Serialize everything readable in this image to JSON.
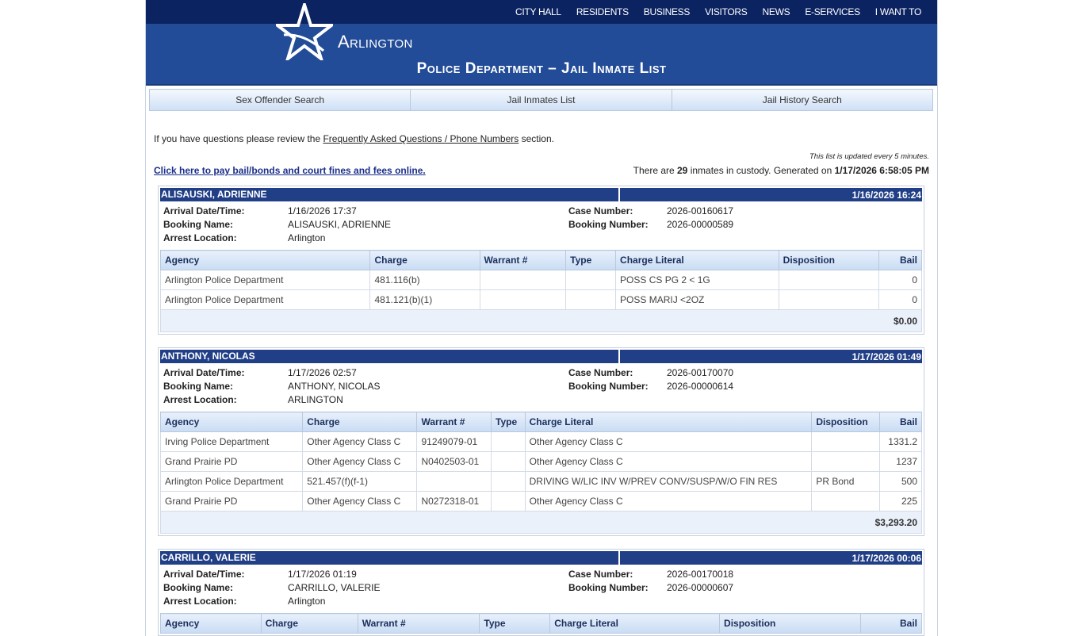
{
  "nav": [
    "CITY HALL",
    "RESIDENTS",
    "BUSINESS",
    "VISITORS",
    "NEWS",
    "E-SERVICES",
    "I WANT TO"
  ],
  "logo_text": "Arlington",
  "page_title": "Police Department – Jail Inmate List",
  "tabs": [
    "Sex Offender Search",
    "Jail Inmates List",
    "Jail History Search"
  ],
  "intro": {
    "before": "If you have questions please review the ",
    "link": "Frequently Asked Questions / Phone Numbers",
    "after": " section."
  },
  "updated": "This list is updated every 5 minutes.",
  "pay_link": "Click here to pay bail/bonds and court fines and fees online.",
  "count": {
    "pre": "There are ",
    "n": "29",
    "mid": " inmates in custody. Generated on ",
    "date": "1/17/2026 6:58:05 PM"
  },
  "labels": {
    "arrival": "Arrival Date/Time:",
    "booking_name": "Booking Name:",
    "arrest_location": "Arrest Location:",
    "case": "Case Number:",
    "booking_number": "Booking Number:"
  },
  "columns": [
    "Agency",
    "Charge",
    "Warrant #",
    "Type",
    "Charge Literal",
    "Disposition",
    "Bail"
  ],
  "inmates": [
    {
      "name": "ALISAUSKI, ADRIENNE",
      "date": "1/16/2026 16:24",
      "arrival": "1/16/2026 17:37",
      "booking_name": "ALISAUSKI, ADRIENNE",
      "arrest_location": "Arlington",
      "case": "2026-00160617",
      "booking_number": "2026-00000589",
      "charges": [
        [
          "Arlington Police Department",
          "481.116(b)",
          "",
          "",
          "POSS CS PG 2 < 1G",
          "",
          "0"
        ],
        [
          "Arlington Police Department",
          "481.121(b)(1)",
          "",
          "",
          "POSS MARIJ <2OZ",
          "",
          "0"
        ]
      ],
      "total": "$0.00"
    },
    {
      "name": "ANTHONY, NICOLAS",
      "date": "1/17/2026 01:49",
      "arrival": "1/17/2026 02:57",
      "booking_name": "ANTHONY, NICOLAS",
      "arrest_location": "ARLINGTON",
      "case": "2026-00170070",
      "booking_number": "2026-00000614",
      "charges": [
        [
          "Irving Police Department",
          "Other Agency Class C",
          "91249079-01",
          "",
          "Other Agency Class C",
          "",
          "1331.2"
        ],
        [
          "Grand Prairie PD",
          "Other Agency Class C",
          "N0402503-01",
          "",
          "Other Agency Class C",
          "",
          "1237"
        ],
        [
          "Arlington Police Department",
          "521.457(f)(f-1)",
          "",
          "",
          "DRIVING W/LIC INV W/PREV CONV/SUSP/W/O FIN RES",
          "PR Bond",
          "500"
        ],
        [
          "Grand Prairie PD",
          "Other Agency Class C",
          "N0272318-01",
          "",
          "Other Agency Class C",
          "",
          "225"
        ]
      ],
      "total": "$3,293.20"
    },
    {
      "name": "CARRILLO, VALERIE",
      "date": "1/17/2026 00:06",
      "arrival": "1/17/2026 01:19",
      "booking_name": "CARRILLO, VALERIE",
      "arrest_location": "Arlington",
      "case": "2026-00170018",
      "booking_number": "2026-00000607",
      "charges": [],
      "total": ""
    }
  ]
}
